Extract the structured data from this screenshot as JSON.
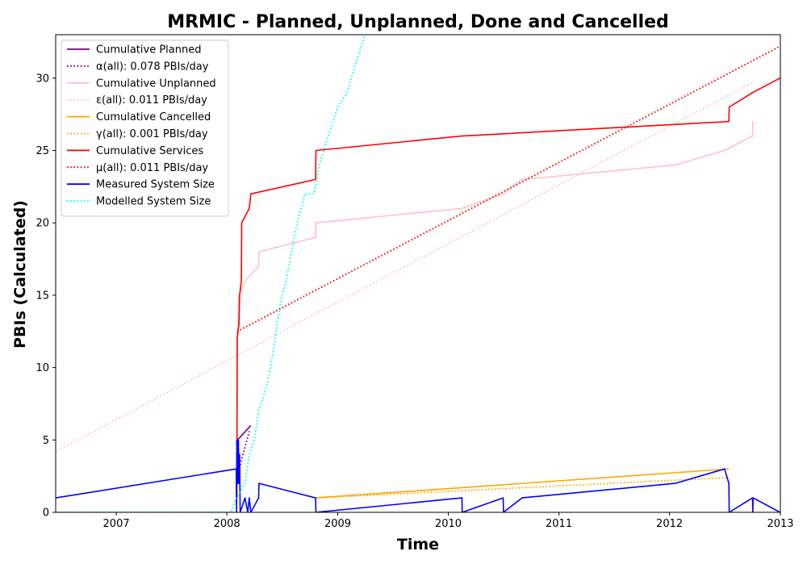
{
  "chart_data": {
    "type": "line",
    "title": "MRMIC - Planned, Unplanned, Done  and Cancelled",
    "xlabel": "Time",
    "ylabel": "PBIs (Calculated)",
    "xlim": [
      "2006-06-15",
      "2013-01-01"
    ],
    "ylim": [
      0,
      33
    ],
    "x_ticks": [
      "2007",
      "2008",
      "2009",
      "2010",
      "2011",
      "2012",
      "2013"
    ],
    "y_ticks": [
      "0",
      "5",
      "10",
      "15",
      "20",
      "25",
      "30"
    ],
    "grid": false,
    "legend_position": "top-left",
    "series": [
      {
        "name": "Cumulative Planned",
        "color": "#800080",
        "style": "solid",
        "points": [
          [
            "2008-02-05",
            5
          ],
          [
            "2008-03-20",
            6
          ]
        ]
      },
      {
        "name": "α(all): 0.078 PBIs/day",
        "color": "#800080",
        "style": "dotted",
        "points": [
          [
            "2008-02-05",
            2.6
          ],
          [
            "2008-03-15",
            5.6
          ]
        ]
      },
      {
        "name": "Cumulative Unplanned",
        "color": "#ffc0cb",
        "style": "solid",
        "points": [
          [
            "2008-02-03",
            1
          ],
          [
            "2008-02-04",
            12
          ],
          [
            "2008-02-10",
            15
          ],
          [
            "2008-03-01",
            16
          ],
          [
            "2008-04-15",
            17
          ],
          [
            "2008-04-16",
            18
          ],
          [
            "2008-10-20",
            19
          ],
          [
            "2008-10-21",
            20
          ],
          [
            "2010-02-15",
            21
          ],
          [
            "2010-07-01",
            22
          ],
          [
            "2010-09-01",
            23
          ],
          [
            "2012-01-20",
            24
          ],
          [
            "2012-07-01",
            25
          ],
          [
            "2012-10-01",
            26
          ],
          [
            "2012-10-02",
            27
          ]
        ]
      },
      {
        "name": "ε(all): 0.011 PBIs/day",
        "color": "#ffc0cb",
        "style": "dotted",
        "points": [
          [
            "2006-06-15",
            4.2
          ],
          [
            "2012-10-01",
            29.7
          ]
        ]
      },
      {
        "name": "Cumulative Cancelled",
        "color": "#ffa500",
        "style": "solid",
        "points": [
          [
            "2008-10-20",
            1
          ],
          [
            "2012-07-15",
            3
          ]
        ]
      },
      {
        "name": "γ(all): 0.001 PBIs/day",
        "color": "#ffa500",
        "style": "dotted",
        "points": [
          [
            "2008-10-20",
            1
          ],
          [
            "2012-07-15",
            2.4
          ]
        ]
      },
      {
        "name": "Cumulative Services",
        "color": "#ff0000",
        "style": "solid",
        "points": [
          [
            "2008-02-03",
            1
          ],
          [
            "2008-02-04",
            12
          ],
          [
            "2008-02-10",
            13
          ],
          [
            "2008-02-12",
            15
          ],
          [
            "2008-02-18",
            16
          ],
          [
            "2008-02-19",
            20
          ],
          [
            "2008-03-15",
            21
          ],
          [
            "2008-03-20",
            22
          ],
          [
            "2008-10-20",
            23
          ],
          [
            "2008-10-21",
            25
          ],
          [
            "2010-02-15",
            26
          ],
          [
            "2012-07-15",
            27
          ],
          [
            "2012-07-16",
            28
          ],
          [
            "2012-10-01",
            29
          ],
          [
            "2012-12-31",
            30
          ]
        ]
      },
      {
        "name": "μ(all): 0.011 PBIs/day",
        "color": "#ff0000",
        "style": "dotted",
        "points": [
          [
            "2008-02-04",
            12.5
          ],
          [
            "2012-12-31",
            32.2
          ]
        ]
      },
      {
        "name": "Measured System Size",
        "color": "#0000ff",
        "style": "solid",
        "points": [
          [
            "2006-06-15",
            1
          ],
          [
            "2008-02-01",
            3
          ],
          [
            "2008-02-02",
            0
          ],
          [
            "2008-02-03",
            5
          ],
          [
            "2008-02-05",
            2
          ],
          [
            "2008-02-06",
            5
          ],
          [
            "2008-02-07",
            2
          ],
          [
            "2008-02-08",
            5
          ],
          [
            "2008-02-10",
            2
          ],
          [
            "2008-02-12",
            4
          ],
          [
            "2008-02-14",
            0
          ],
          [
            "2008-03-01",
            1
          ],
          [
            "2008-03-10",
            0
          ],
          [
            "2008-03-15",
            1
          ],
          [
            "2008-03-20",
            0
          ],
          [
            "2008-04-15",
            1
          ],
          [
            "2008-04-16",
            2
          ],
          [
            "2008-10-20",
            1
          ],
          [
            "2008-10-21",
            0
          ],
          [
            "2010-02-15",
            1
          ],
          [
            "2010-02-16",
            0
          ],
          [
            "2010-07-01",
            1
          ],
          [
            "2010-07-02",
            0
          ],
          [
            "2010-09-01",
            1
          ],
          [
            "2012-01-20",
            2
          ],
          [
            "2012-07-01",
            3
          ],
          [
            "2012-07-15",
            2
          ],
          [
            "2012-07-16",
            0
          ],
          [
            "2012-10-01",
            1
          ],
          [
            "2012-10-02",
            0
          ],
          [
            "2012-10-03",
            1
          ],
          [
            "2012-12-31",
            0
          ]
        ]
      },
      {
        "name": "Modelled System Size",
        "color": "#00ffff",
        "style": "dotted",
        "points": [
          [
            "2006-06-15",
            0
          ],
          [
            "2008-01-15",
            0
          ],
          [
            "2008-02-01",
            1
          ],
          [
            "2008-03-01",
            2
          ],
          [
            "2008-03-15",
            4
          ],
          [
            "2008-04-01",
            5
          ],
          [
            "2008-04-15",
            7
          ],
          [
            "2008-05-01",
            8
          ],
          [
            "2008-05-15",
            9
          ],
          [
            "2008-06-01",
            11
          ],
          [
            "2008-06-15",
            13
          ],
          [
            "2008-07-01",
            15
          ],
          [
            "2008-07-15",
            16
          ],
          [
            "2008-08-01",
            18
          ],
          [
            "2008-08-20",
            20
          ],
          [
            "2008-09-15",
            22
          ],
          [
            "2008-10-15",
            22
          ],
          [
            "2008-11-01",
            24
          ],
          [
            "2008-12-01",
            26
          ],
          [
            "2009-01-01",
            28
          ],
          [
            "2009-02-01",
            29
          ],
          [
            "2009-03-01",
            31
          ],
          [
            "2009-04-01",
            33
          ]
        ]
      }
    ]
  }
}
